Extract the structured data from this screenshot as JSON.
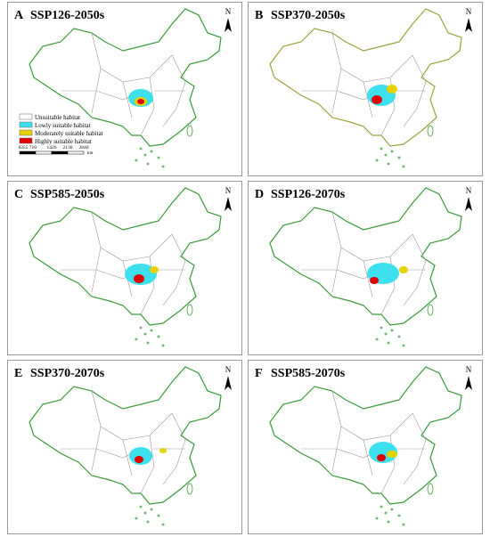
{
  "panels": [
    {
      "letter": "A",
      "title": "SSP126-2050s"
    },
    {
      "letter": "B",
      "title": "SSP370-2050s"
    },
    {
      "letter": "C",
      "title": "SSP585-2050s"
    },
    {
      "letter": "D",
      "title": "SSP126-2070s"
    },
    {
      "letter": "E",
      "title": "SSP370-2070s"
    },
    {
      "letter": "F",
      "title": "SSP585-2070s"
    }
  ],
  "north_label": "N",
  "legend": [
    {
      "label": "Unsuitable  habitat",
      "color": "#ffffff"
    },
    {
      "label": "Lowly suitable  habitat",
      "color": "#3ee0ee"
    },
    {
      "label": "Moderately suitable habitat",
      "color": "#e6d200"
    },
    {
      "label": "Highly suitable habitat",
      "color": "#e00000"
    }
  ],
  "scale_bar": {
    "labels": [
      "0",
      "355 710",
      "1420",
      "2130",
      "2840"
    ],
    "unit": "km"
  }
}
